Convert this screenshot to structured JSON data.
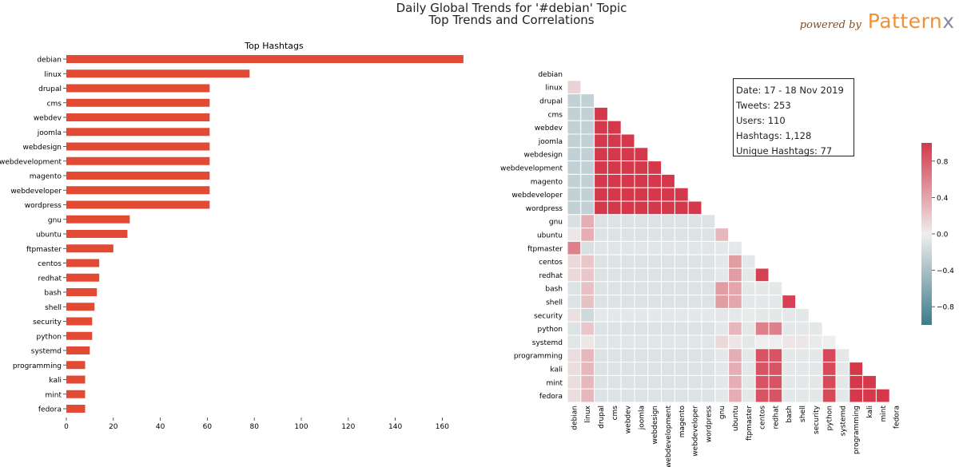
{
  "header": {
    "title": "Daily Global Trends for '#debian' Topic",
    "subtitle": "Top Trends and Correlations",
    "brand_prefix": "powered by",
    "brand_name": "Pattern",
    "brand_suffix": "x"
  },
  "stats": {
    "date": "Date: 17 - 18 Nov 2019",
    "tweets": "Tweets: 253",
    "users": "Users: 110",
    "hashtags": "Hashtags: 1,128",
    "unique": "Unique Hashtags: 77"
  },
  "chart_data": [
    {
      "type": "bar",
      "orientation": "horizontal",
      "title": "Top Hashtags",
      "categories": [
        "debian",
        "linux",
        "drupal",
        "cms",
        "webdev",
        "joomla",
        "webdesign",
        "webdevelopment",
        "magento",
        "webdeveloper",
        "wordpress",
        "gnu",
        "ubuntu",
        "ftpmaster",
        "centos",
        "redhat",
        "bash",
        "shell",
        "security",
        "python",
        "systemd",
        "programming",
        "kali",
        "mint",
        "fedora"
      ],
      "values": [
        169,
        78,
        61,
        61,
        61,
        61,
        61,
        61,
        61,
        61,
        61,
        27,
        26,
        20,
        14,
        14,
        13,
        12,
        11,
        11,
        10,
        8,
        8,
        8,
        8
      ],
      "xticks": [
        0,
        20,
        40,
        60,
        80,
        100,
        120,
        140,
        160
      ],
      "xlim": [
        0,
        170
      ],
      "color": "#e34a33"
    },
    {
      "type": "heatmap",
      "title": "",
      "labels": [
        "debian",
        "linux",
        "drupal",
        "cms",
        "webdev",
        "joomla",
        "webdesign",
        "webdevelopment",
        "magento",
        "webdeveloper",
        "wordpress",
        "gnu",
        "ubuntu",
        "ftpmaster",
        "centos",
        "redhat",
        "bash",
        "shell",
        "security",
        "python",
        "systemd",
        "programming",
        "kali",
        "mint",
        "fedora"
      ],
      "mask": "upper-triangle",
      "colorbar_ticks": [
        0.8,
        0.4,
        0.0,
        -0.4,
        -0.8
      ],
      "colorbar_labels": [
        "0.8",
        "0.4",
        "0.0",
        "−0.4",
        "−0.8"
      ],
      "vmin": -1,
      "vmax": 1,
      "matrix": [
        [],
        [
          0.15
        ],
        [
          -0.25,
          -0.25
        ],
        [
          -0.25,
          -0.25,
          1.0
        ],
        [
          -0.25,
          -0.25,
          1.0,
          1.0
        ],
        [
          -0.25,
          -0.25,
          1.0,
          1.0,
          1.0
        ],
        [
          -0.25,
          -0.25,
          1.0,
          1.0,
          1.0,
          1.0
        ],
        [
          -0.25,
          -0.25,
          1.0,
          1.0,
          1.0,
          1.0,
          1.0
        ],
        [
          -0.25,
          -0.25,
          1.0,
          1.0,
          1.0,
          1.0,
          1.0,
          1.0
        ],
        [
          -0.25,
          -0.25,
          1.0,
          1.0,
          1.0,
          1.0,
          1.0,
          1.0,
          1.0
        ],
        [
          -0.25,
          -0.25,
          1.0,
          1.0,
          1.0,
          1.0,
          1.0,
          1.0,
          1.0,
          1.0
        ],
        [
          -0.12,
          0.35,
          -0.1,
          -0.1,
          -0.1,
          -0.1,
          -0.1,
          -0.1,
          -0.1,
          -0.1,
          -0.1
        ],
        [
          0.05,
          0.35,
          -0.1,
          -0.1,
          -0.1,
          -0.1,
          -0.1,
          -0.1,
          -0.1,
          -0.1,
          -0.1,
          0.3
        ],
        [
          0.6,
          -0.12,
          -0.08,
          -0.08,
          -0.08,
          -0.08,
          -0.08,
          -0.08,
          -0.08,
          -0.08,
          -0.08,
          -0.05,
          -0.05
        ],
        [
          0.12,
          0.22,
          -0.1,
          -0.1,
          -0.1,
          -0.1,
          -0.1,
          -0.1,
          -0.1,
          -0.1,
          -0.1,
          -0.05,
          0.45,
          -0.05
        ],
        [
          0.12,
          0.22,
          -0.1,
          -0.1,
          -0.1,
          -0.1,
          -0.1,
          -0.1,
          -0.1,
          -0.1,
          -0.1,
          -0.05,
          0.45,
          -0.05,
          0.95
        ],
        [
          -0.1,
          0.25,
          -0.1,
          -0.1,
          -0.1,
          -0.1,
          -0.1,
          -0.1,
          -0.1,
          -0.1,
          -0.1,
          0.45,
          0.4,
          -0.05,
          -0.05,
          -0.05
        ],
        [
          -0.1,
          0.25,
          -0.1,
          -0.1,
          -0.1,
          -0.1,
          -0.1,
          -0.1,
          -0.1,
          -0.1,
          -0.1,
          0.45,
          0.4,
          -0.05,
          -0.05,
          -0.05,
          0.95
        ],
        [
          0.08,
          -0.18,
          -0.05,
          -0.05,
          -0.05,
          -0.05,
          -0.05,
          -0.05,
          -0.05,
          -0.05,
          -0.05,
          -0.05,
          -0.05,
          -0.03,
          -0.05,
          -0.05,
          -0.05,
          -0.05
        ],
        [
          -0.1,
          0.22,
          -0.1,
          -0.1,
          -0.1,
          -0.1,
          -0.1,
          -0.1,
          -0.1,
          -0.1,
          -0.1,
          -0.05,
          0.3,
          -0.05,
          0.6,
          0.6,
          -0.05,
          -0.05,
          -0.05
        ],
        [
          -0.08,
          0.05,
          -0.08,
          -0.08,
          -0.08,
          -0.08,
          -0.08,
          -0.08,
          -0.08,
          -0.08,
          -0.08,
          0.12,
          0.05,
          -0.05,
          0.0,
          0.0,
          0.05,
          0.05,
          -0.03,
          0.0
        ],
        [
          0.1,
          0.3,
          -0.1,
          -0.1,
          -0.1,
          -0.1,
          -0.1,
          -0.1,
          -0.1,
          -0.1,
          -0.1,
          -0.05,
          0.35,
          -0.05,
          0.85,
          0.85,
          -0.05,
          -0.05,
          -0.05,
          0.9,
          -0.05
        ],
        [
          0.1,
          0.3,
          -0.1,
          -0.1,
          -0.1,
          -0.1,
          -0.1,
          -0.1,
          -0.1,
          -0.1,
          -0.1,
          -0.05,
          0.35,
          -0.05,
          0.85,
          0.85,
          -0.05,
          -0.05,
          -0.05,
          0.9,
          -0.05,
          1.0
        ],
        [
          0.1,
          0.3,
          -0.1,
          -0.1,
          -0.1,
          -0.1,
          -0.1,
          -0.1,
          -0.1,
          -0.1,
          -0.1,
          -0.05,
          0.35,
          -0.05,
          0.85,
          0.85,
          -0.05,
          -0.05,
          -0.05,
          0.9,
          -0.05,
          1.0,
          1.0
        ],
        [
          0.1,
          0.3,
          -0.1,
          -0.1,
          -0.1,
          -0.1,
          -0.1,
          -0.1,
          -0.1,
          -0.1,
          -0.1,
          -0.05,
          0.35,
          -0.05,
          0.85,
          0.85,
          -0.05,
          -0.05,
          -0.05,
          0.9,
          -0.05,
          1.0,
          1.0,
          1.0
        ]
      ]
    }
  ]
}
